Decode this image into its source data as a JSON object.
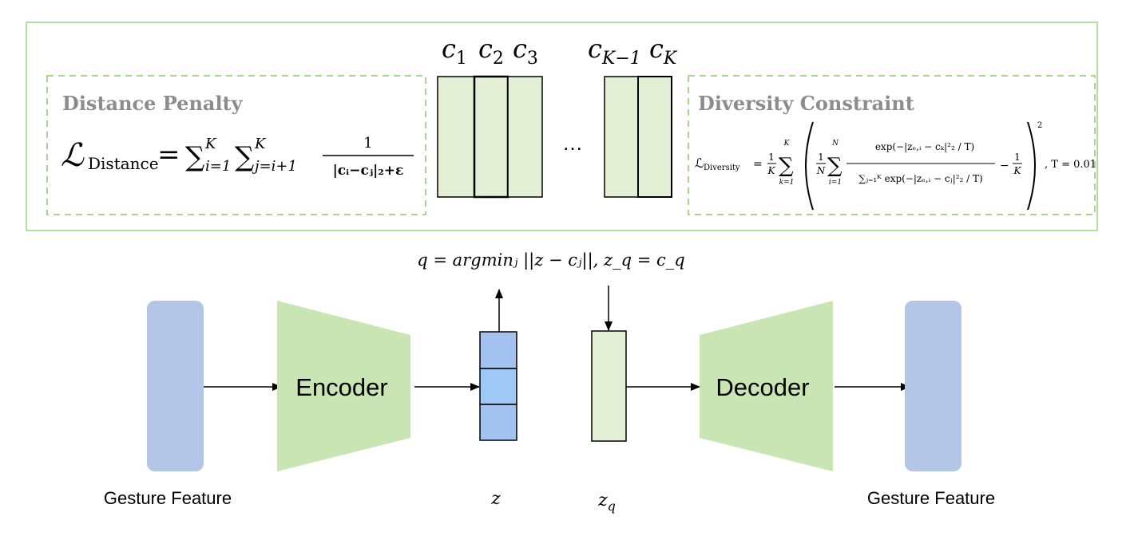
{
  "codebook": {
    "labels": [
      {
        "base": "c",
        "sub": "1"
      },
      {
        "base": "c",
        "sub": "2"
      },
      {
        "base": "c",
        "sub": "3"
      },
      {
        "base": "c",
        "sub": "K−1"
      },
      {
        "base": "c",
        "sub": "K"
      }
    ],
    "ellipsis": "…"
  },
  "distance_penalty": {
    "title": "Distance Penalty",
    "loss_symbol": "ℒ",
    "loss_sub": "Distance",
    "equals": "=",
    "sum1": "∑",
    "sum1_sub": "i=1",
    "sum1_sup": "K",
    "sum2": "∑",
    "sum2_sub": "j=i+1",
    "sum2_sup": "K",
    "numerator": "1",
    "denominator": "|cᵢ−cⱼ|₂+ε"
  },
  "diversity_constraint": {
    "title": "Diversity Constraint",
    "loss_symbol": "ℒ",
    "loss_sub": "Diversity",
    "equals": "=",
    "frac1_num": "1",
    "frac1_den": "K",
    "sum_k_sup": "K",
    "sum_k_sub": "k=1",
    "frac2_num": "1",
    "frac2_den": "N",
    "sum_i_sup": "N",
    "sum_i_sub": "i=1",
    "num_text": "exp(−|zₑ,ᵢ − cₖ|²₂ / T)",
    "den_text": "∑ⱼ₌₁ᴷ exp(−|zₑ,ᵢ − cⱼ|²₂ / T)",
    "minus": "−",
    "frac3_num": "1",
    "frac3_den": "K",
    "power": "2",
    "tail": ", T = 0.01"
  },
  "quantization_formula": "q = argminⱼ ||z − cⱼ||, z_q = c_q",
  "encoder_label": "Encoder",
  "decoder_label": "Decoder",
  "input_label": "Gesture Feature",
  "output_label": "Gesture Feature",
  "z_label": "z",
  "zq_label": {
    "base": "z",
    "sub": "q"
  },
  "colors": {
    "box_border": "#b7dca2",
    "dashed_border": "#a8d68e",
    "codebook_fill": "#e3f0d6",
    "trapezoid_fill": "#c9e5b4",
    "feature_fill": "#b4c6e7",
    "z_fill": "#a4c2f0",
    "z_mid_fill": "#9ec9f7",
    "title_gray": "#8c8c8c"
  }
}
